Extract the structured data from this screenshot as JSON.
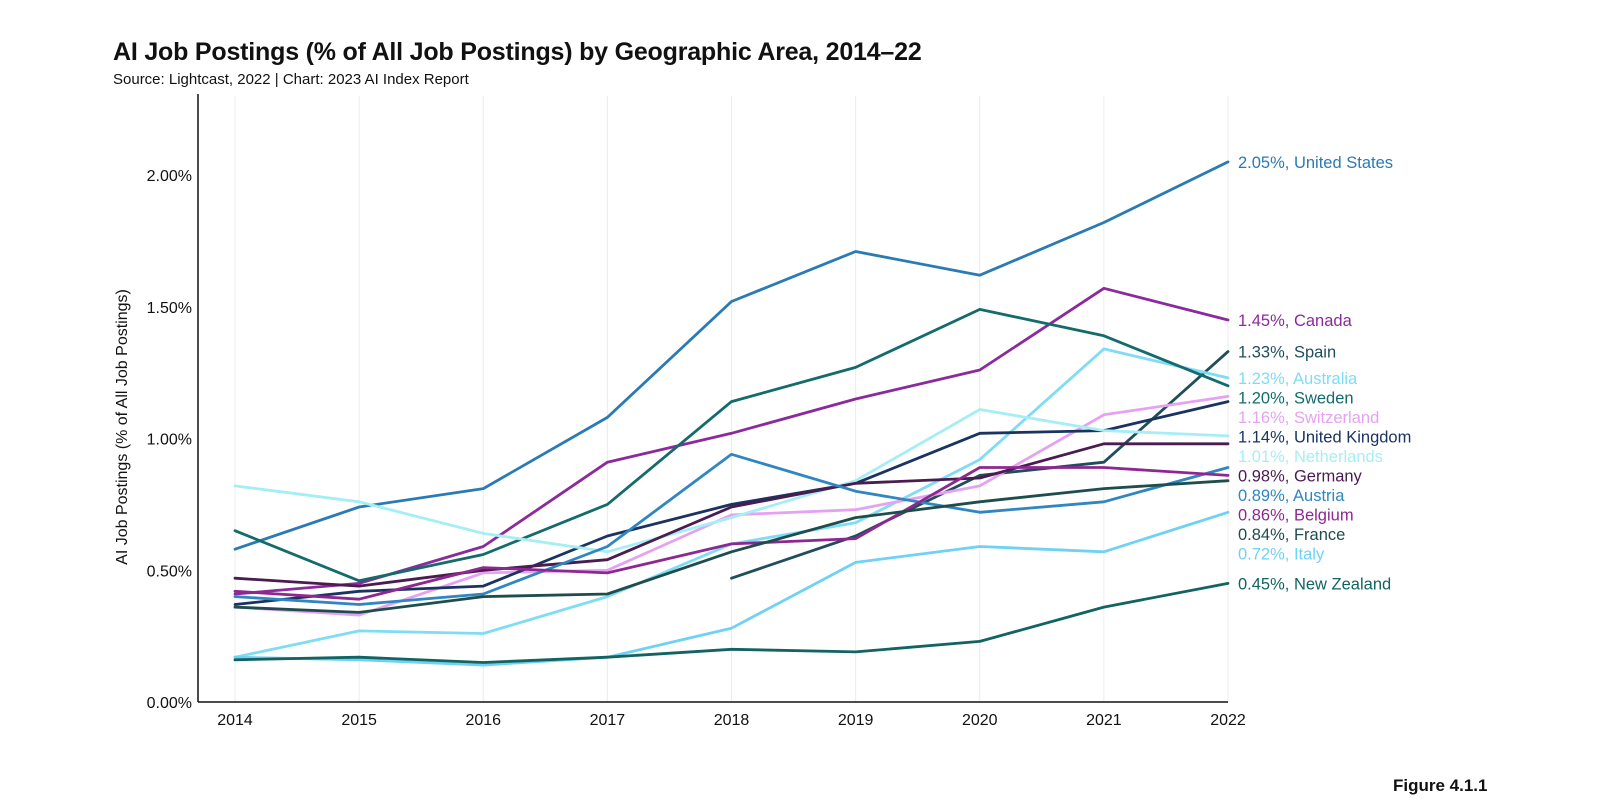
{
  "header": {
    "title": "AI Job Postings (% of All Job Postings) by Geographic Area, 2014–22",
    "subtitle": "Source: Lightcast, 2022 | Chart: 2023 AI Index Report"
  },
  "figure_label": "Figure 4.1.1",
  "chart_data": {
    "type": "line",
    "title": "AI Job Postings (% of All Job Postings) by Geographic Area, 2014–22",
    "xlabel": "",
    "ylabel": "AI Job Postings (% of All Job Postings)",
    "x": [
      2014,
      2015,
      2016,
      2017,
      2018,
      2019,
      2020,
      2021,
      2022
    ],
    "x_tick_labels": [
      "2014",
      "2015",
      "2016",
      "2017",
      "2018",
      "2019",
      "2020",
      "2021",
      "2022"
    ],
    "ylim": [
      0,
      2.3
    ],
    "y_ticks": [
      0,
      0.5,
      1.0,
      1.5,
      2.0
    ],
    "y_tick_labels": [
      "0.00%",
      "0.50%",
      "1.00%",
      "1.50%",
      "2.00%"
    ],
    "grid": "vertical",
    "series": [
      {
        "name": "United States",
        "color": "#2a7ab5",
        "label": "2.05%, United States",
        "values": [
          0.58,
          0.74,
          0.81,
          1.08,
          1.52,
          1.71,
          1.62,
          1.82,
          2.05
        ]
      },
      {
        "name": "Canada",
        "color": "#8b2a9c",
        "label": "1.45%, Canada",
        "values": [
          0.41,
          0.45,
          0.59,
          0.91,
          1.02,
          1.15,
          1.26,
          1.57,
          1.45
        ]
      },
      {
        "name": "Spain",
        "color": "#1e4e5c",
        "label": "1.33%, Spain",
        "values": [
          null,
          null,
          null,
          null,
          0.47,
          0.63,
          0.86,
          0.91,
          1.33
        ]
      },
      {
        "name": "Australia",
        "color": "#7fdcf5",
        "label": "1.23%, Australia",
        "values": [
          0.17,
          0.27,
          0.26,
          0.4,
          0.6,
          0.68,
          0.92,
          1.34,
          1.23
        ]
      },
      {
        "name": "Sweden",
        "color": "#146b6b",
        "label": "1.20%, Sweden",
        "values": [
          0.65,
          0.46,
          0.56,
          0.75,
          1.14,
          1.27,
          1.49,
          1.39,
          1.2
        ]
      },
      {
        "name": "Switzerland",
        "color": "#e6a2f2",
        "label": "1.16%, Switzerland",
        "values": [
          0.36,
          0.33,
          0.49,
          0.5,
          0.71,
          0.73,
          0.82,
          1.09,
          1.16
        ]
      },
      {
        "name": "United Kingdom",
        "color": "#1a3361",
        "label": "1.14%, United Kingdom",
        "values": [
          0.37,
          0.42,
          0.44,
          0.63,
          0.75,
          0.83,
          1.02,
          1.03,
          1.14
        ]
      },
      {
        "name": "Netherlands",
        "color": "#a6eef5",
        "label": "1.01%, Netherlands",
        "values": [
          0.82,
          0.76,
          0.64,
          0.57,
          0.7,
          0.84,
          1.11,
          1.03,
          1.01
        ]
      },
      {
        "name": "Germany",
        "color": "#4a1c4f",
        "label": "0.98%, Germany",
        "values": [
          0.47,
          0.44,
          0.5,
          0.54,
          0.74,
          0.83,
          0.85,
          0.98,
          0.98
        ]
      },
      {
        "name": "Austria",
        "color": "#2f86c0",
        "label": "0.89%, Austria",
        "values": [
          0.4,
          0.37,
          0.41,
          0.59,
          0.94,
          0.8,
          0.72,
          0.76,
          0.89
        ]
      },
      {
        "name": "Belgium",
        "color": "#8e2891",
        "label": "0.86%, Belgium",
        "values": [
          0.42,
          0.39,
          0.51,
          0.49,
          0.6,
          0.62,
          0.89,
          0.89,
          0.86
        ]
      },
      {
        "name": "France",
        "color": "#1f4d4d",
        "label": "0.84%, France",
        "values": [
          0.36,
          0.34,
          0.4,
          0.41,
          0.57,
          0.7,
          0.76,
          0.81,
          0.84
        ]
      },
      {
        "name": "Italy",
        "color": "#6fd2f5",
        "label": "0.72%, Italy",
        "values": [
          0.17,
          0.16,
          0.14,
          0.17,
          0.28,
          0.53,
          0.59,
          0.57,
          0.72
        ]
      },
      {
        "name": "New Zealand",
        "color": "#136363",
        "label": "0.45%, New Zealand",
        "values": [
          0.16,
          0.17,
          0.15,
          0.17,
          0.2,
          0.19,
          0.23,
          0.36,
          0.45
        ]
      }
    ]
  }
}
